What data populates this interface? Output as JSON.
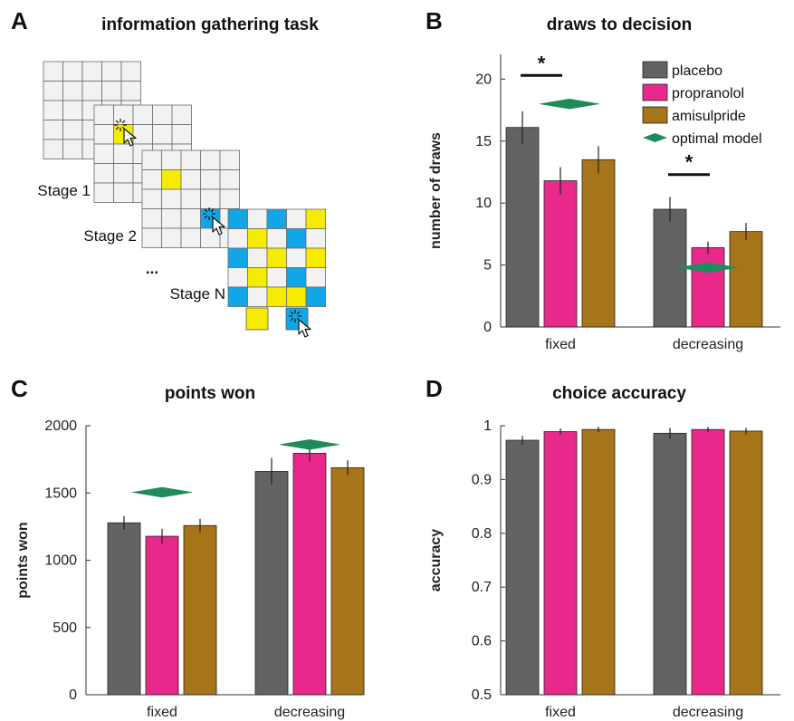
{
  "panels": {
    "A": {
      "letter": "A",
      "title": "information gathering task",
      "stages": [
        "Stage 1",
        "Stage 2",
        "...",
        "Stage N"
      ]
    },
    "B": {
      "letter": "B"
    },
    "C": {
      "letter": "C"
    },
    "D": {
      "letter": "D"
    }
  },
  "colors": {
    "placebo": "#636363",
    "propranolol": "#e8288a",
    "amisulpride": "#a77519",
    "optimal": "#1f8a5a",
    "grid_yellow": "#f5ec00",
    "grid_blue": "#11a6e6",
    "grid_gray": "#f2f2f2"
  },
  "legend": [
    {
      "label": "placebo",
      "marker": "square"
    },
    {
      "label": "propranolol",
      "marker": "square"
    },
    {
      "label": "amisulpride",
      "marker": "square"
    },
    {
      "label": "optimal model",
      "marker": "diamond"
    }
  ],
  "chart_data": [
    {
      "panel": "B",
      "type": "bar",
      "title": "draws to decision",
      "categories": [
        "fixed",
        "decreasing"
      ],
      "ylabel": "number of draws",
      "ylim": [
        0,
        22
      ],
      "yticks": [
        0,
        5,
        10,
        15,
        20
      ],
      "series": [
        {
          "name": "placebo",
          "values": [
            16.1,
            9.5
          ],
          "errors": [
            1.3,
            1.0
          ]
        },
        {
          "name": "propranolol",
          "values": [
            11.8,
            6.4
          ],
          "errors": [
            1.1,
            0.5
          ]
        },
        {
          "name": "amisulpride",
          "values": [
            13.5,
            7.7
          ],
          "errors": [
            1.1,
            0.7
          ]
        }
      ],
      "optimal_model": [
        18.0,
        4.8
      ],
      "significance": [
        {
          "category": "fixed",
          "label": "*"
        },
        {
          "category": "decreasing",
          "label": "*"
        }
      ],
      "legend_position": "top-right"
    },
    {
      "panel": "C",
      "type": "bar",
      "title": "points won",
      "categories": [
        "fixed",
        "decreasing"
      ],
      "ylabel": "points won",
      "ylim": [
        0,
        2000
      ],
      "yticks": [
        0,
        500,
        1000,
        1500,
        2000
      ],
      "series": [
        {
          "name": "placebo",
          "values": [
            1278,
            1660
          ],
          "errors": [
            50,
            100
          ]
        },
        {
          "name": "propranolol",
          "values": [
            1178,
            1795
          ],
          "errors": [
            55,
            60
          ]
        },
        {
          "name": "amisulpride",
          "values": [
            1258,
            1688
          ],
          "errors": [
            50,
            55
          ]
        }
      ],
      "optimal_model": [
        1505,
        1860
      ]
    },
    {
      "panel": "D",
      "type": "bar",
      "title": "choice accuracy",
      "categories": [
        "fixed",
        "decreasing"
      ],
      "ylabel": "accuracy",
      "ylim": [
        0.5,
        1.0
      ],
      "yticks": [
        0.5,
        0.6,
        0.7,
        0.8,
        0.9,
        1.0
      ],
      "series": [
        {
          "name": "placebo",
          "values": [
            0.973,
            0.986
          ],
          "errors": [
            0.008,
            0.01
          ]
        },
        {
          "name": "propranolol",
          "values": [
            0.989,
            0.993
          ],
          "errors": [
            0.006,
            0.005
          ]
        },
        {
          "name": "amisulpride",
          "values": [
            0.993,
            0.99
          ],
          "errors": [
            0.005,
            0.006
          ]
        }
      ]
    }
  ]
}
